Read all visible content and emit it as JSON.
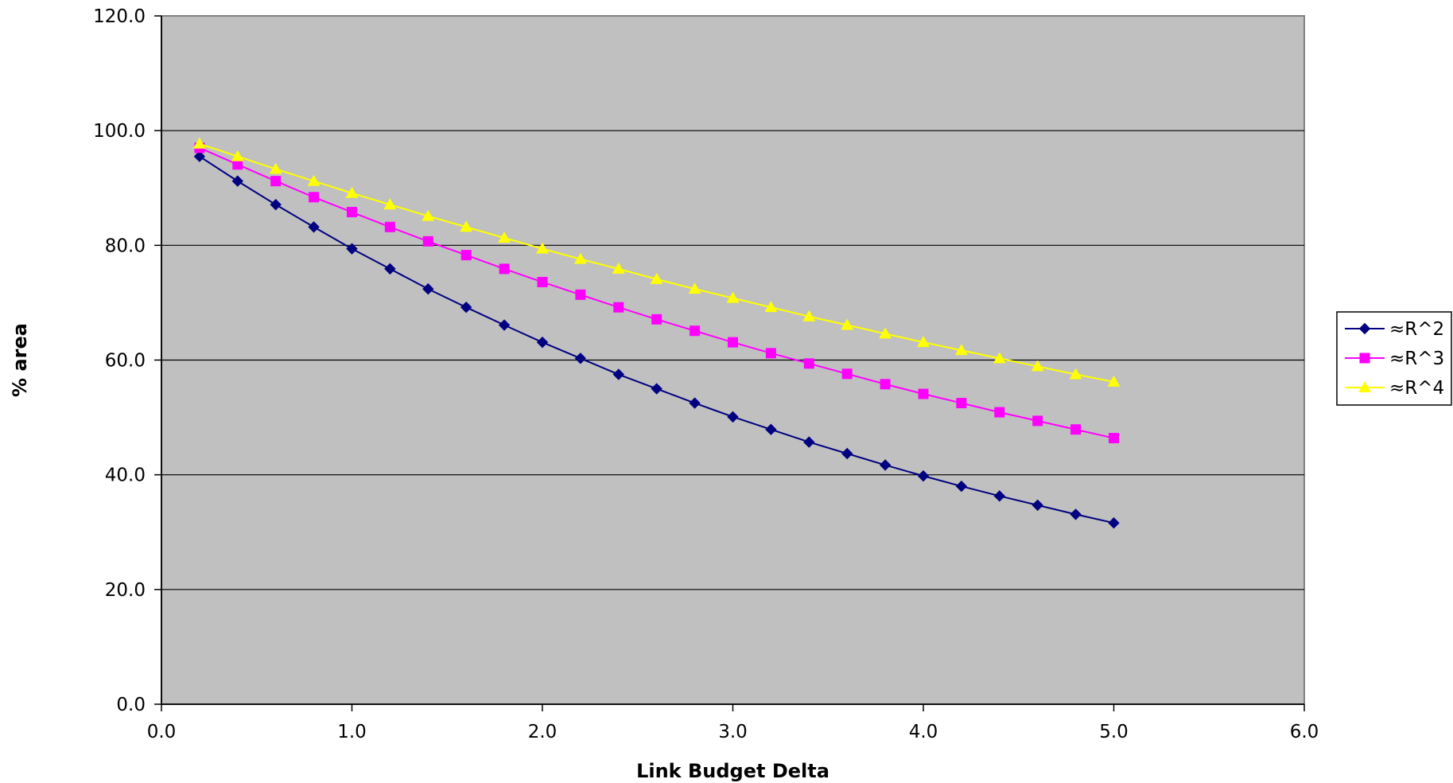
{
  "chart_data": {
    "type": "line",
    "xlabel": "Link Budget Delta",
    "ylabel": "% area",
    "xlim": [
      0,
      6
    ],
    "ylim": [
      0,
      120
    ],
    "x_ticks": [
      0,
      1,
      2,
      3,
      4,
      5,
      6
    ],
    "y_ticks": [
      0,
      20,
      40,
      60,
      80,
      100,
      120
    ],
    "x_tick_labels": [
      "0.0",
      "1.0",
      "2.0",
      "3.0",
      "4.0",
      "5.0",
      "6.0"
    ],
    "y_tick_labels": [
      "0.0",
      "20.0",
      "40.0",
      "60.0",
      "80.0",
      "100.0",
      "120.0"
    ],
    "grid": "horizontal major",
    "plot_background": "#c0c0c0",
    "legend_position": "right",
    "x": [
      0.2,
      0.4,
      0.6,
      0.8,
      1.0,
      1.2,
      1.4,
      1.6,
      1.8,
      2.0,
      2.2,
      2.4,
      2.6,
      2.8,
      3.0,
      3.2,
      3.4,
      3.6,
      3.8,
      4.0,
      4.2,
      4.4,
      4.6,
      4.8,
      5.0
    ],
    "series": [
      {
        "name": "≈R^2",
        "color": "#000080",
        "marker": "diamond",
        "values": [
          95.5,
          91.2,
          87.1,
          83.2,
          79.4,
          75.9,
          72.4,
          69.2,
          66.1,
          63.1,
          60.3,
          57.5,
          55.0,
          52.5,
          50.1,
          47.9,
          45.7,
          43.7,
          41.7,
          39.8,
          38.0,
          36.3,
          34.7,
          33.1,
          31.6
        ]
      },
      {
        "name": "≈R^3",
        "color": "#ff00ff",
        "marker": "square",
        "values": [
          97.0,
          94.1,
          91.2,
          88.4,
          85.8,
          83.2,
          80.7,
          78.3,
          75.9,
          73.6,
          71.4,
          69.2,
          67.1,
          65.1,
          63.1,
          61.2,
          59.4,
          57.6,
          55.8,
          54.1,
          52.5,
          50.9,
          49.4,
          47.9,
          46.4
        ]
      },
      {
        "name": "≈R^4",
        "color": "#ffff00",
        "marker": "triangle",
        "values": [
          97.7,
          95.5,
          93.3,
          91.2,
          89.1,
          87.1,
          85.1,
          83.2,
          81.3,
          79.4,
          77.6,
          75.9,
          74.1,
          72.4,
          70.8,
          69.2,
          67.6,
          66.1,
          64.6,
          63.1,
          61.7,
          60.3,
          58.9,
          57.5,
          56.2
        ]
      }
    ]
  }
}
